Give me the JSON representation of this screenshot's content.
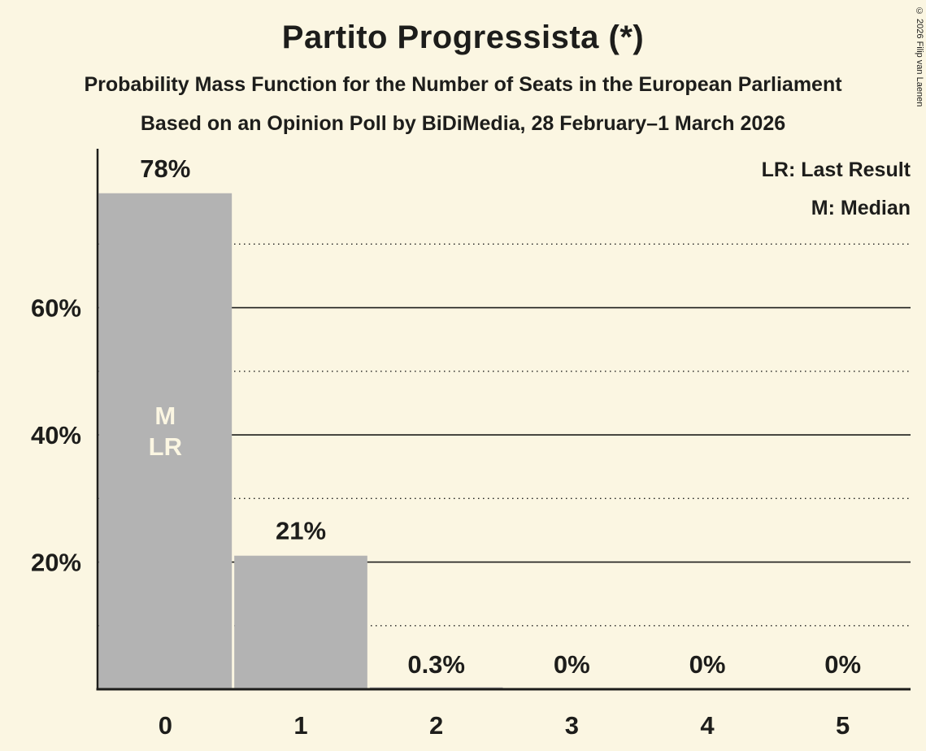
{
  "colors": {
    "background": "#FBF6E2",
    "bar": "#B3B3B3",
    "text": "#1D1D1B",
    "bar_annotation": "#FBF6E2"
  },
  "chart_data": {
    "type": "bar",
    "title": "Partito Progressista (*)",
    "subtitle": "Probability Mass Function for the Number of Seats in the European Parliament",
    "poll_line": "Based on an Opinion Poll by BiDiMedia, 28 February–1 March 2026",
    "legend": {
      "lr": "LR: Last Result",
      "m": "M: Median"
    },
    "copyright": "© 2026 Filip van Laenen",
    "categories": [
      "0",
      "1",
      "2",
      "3",
      "4",
      "5"
    ],
    "values": [
      78,
      21,
      0.3,
      0,
      0,
      0
    ],
    "value_labels": [
      "78%",
      "21%",
      "0.3%",
      "0%",
      "0%",
      "0%"
    ],
    "ylim": [
      0,
      85
    ],
    "yticks": [
      {
        "value": 20,
        "label": "20%"
      },
      {
        "value": 40,
        "label": "40%"
      },
      {
        "value": 60,
        "label": "60%"
      }
    ],
    "grid_solid": [
      20,
      40,
      60
    ],
    "grid_dotted": [
      10,
      30,
      50,
      70
    ],
    "annotations": [
      {
        "bar_index": 0,
        "lines": [
          "M",
          "LR"
        ]
      }
    ],
    "legend_position": "top-right",
    "grid": true
  }
}
